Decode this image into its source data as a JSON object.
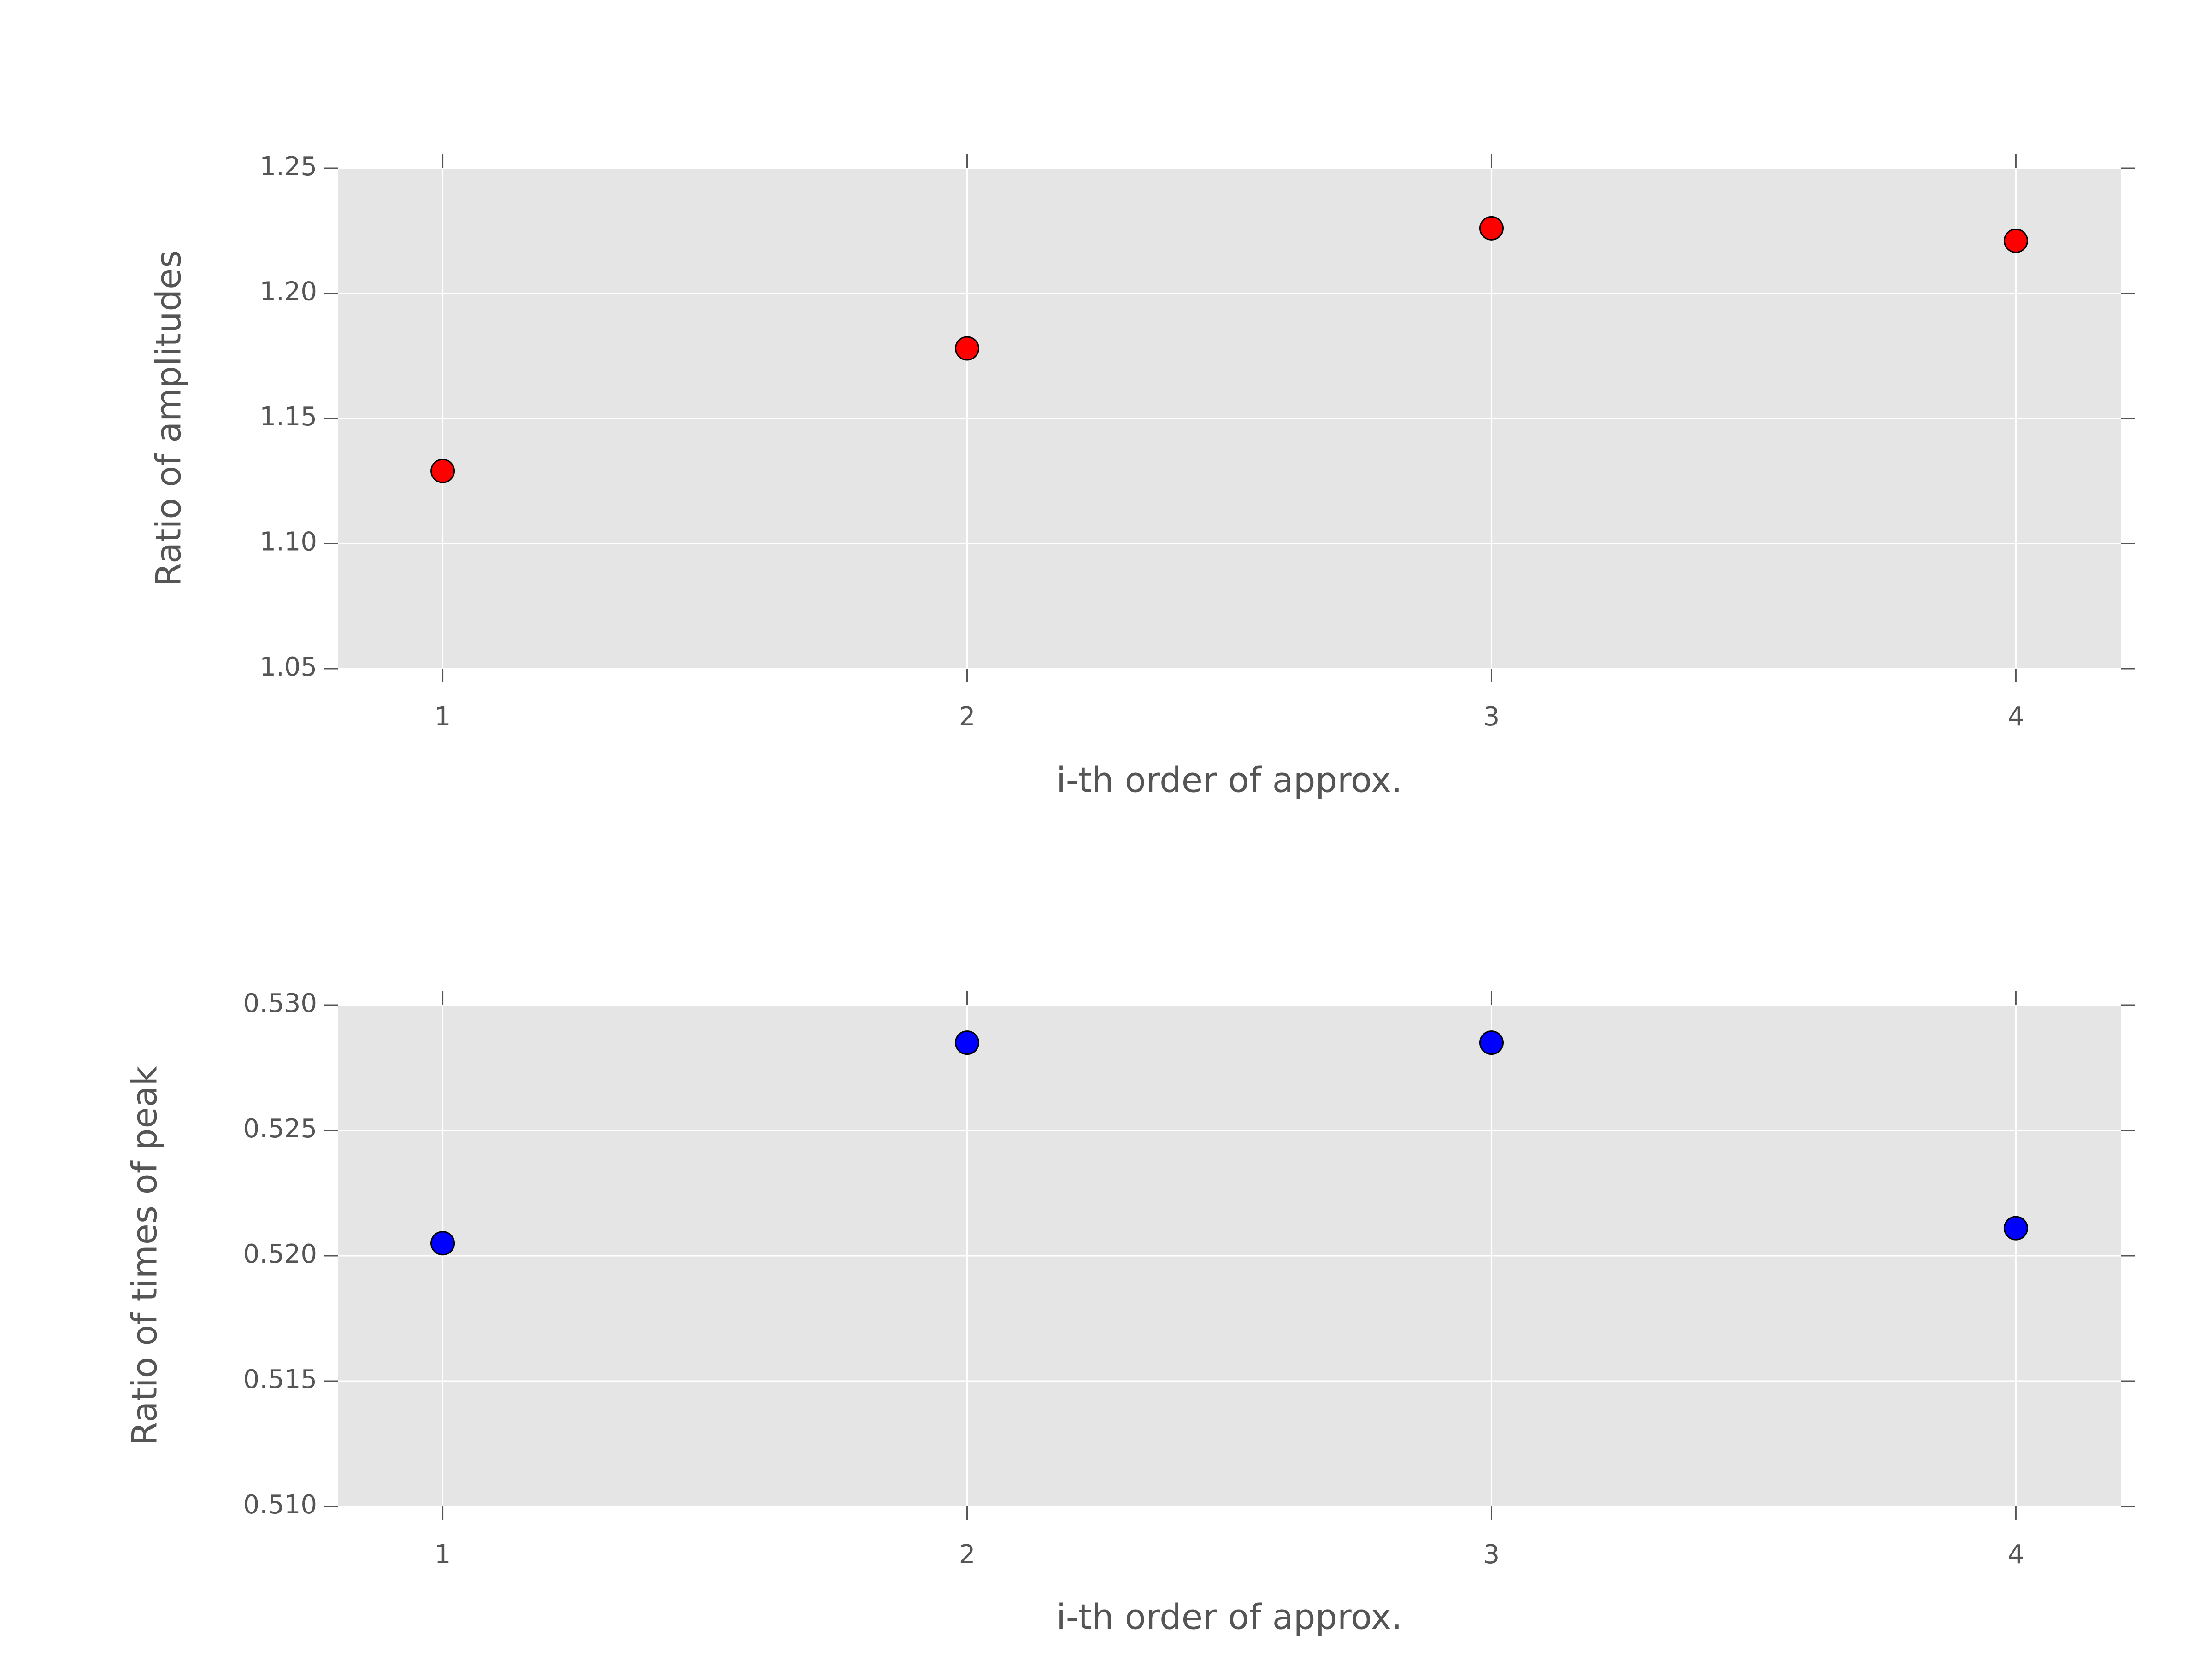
{
  "chart_data": [
    {
      "type": "scatter",
      "x": [
        1,
        2,
        3,
        4
      ],
      "values": [
        1.129,
        1.178,
        1.226,
        1.221
      ],
      "color": "#ff0000",
      "xlabel": "i-th order of approx.",
      "ylabel": "Ratio of amplitudes",
      "xlim": [
        0.8,
        4.2
      ],
      "xticks": [
        1,
        2,
        3,
        4
      ],
      "ylim": [
        1.05,
        1.25
      ],
      "yticks": [
        {
          "value": 1.05,
          "label": "1.05"
        },
        {
          "value": 1.1,
          "label": "1.10"
        },
        1.15,
        {
          "value": 1.2,
          "label": "1.20"
        },
        1.25
      ],
      "grid": true
    },
    {
      "type": "scatter",
      "x": [
        1,
        2,
        3,
        4
      ],
      "values": [
        0.5205,
        0.5285,
        0.5285,
        0.5211
      ],
      "color": "#0000ff",
      "xlabel": "i-th order of approx.",
      "ylabel": "Ratio of times of peak",
      "xlim": [
        0.8,
        4.2
      ],
      "xticks": [
        1,
        2,
        3,
        4
      ],
      "ylim": [
        0.51,
        0.53
      ],
      "yticks": [
        {
          "value": 0.51,
          "label": "0.510"
        },
        0.515,
        {
          "value": 0.52,
          "label": "0.520"
        },
        0.525,
        {
          "value": 0.53,
          "label": "0.530"
        }
      ],
      "grid": true
    }
  ]
}
